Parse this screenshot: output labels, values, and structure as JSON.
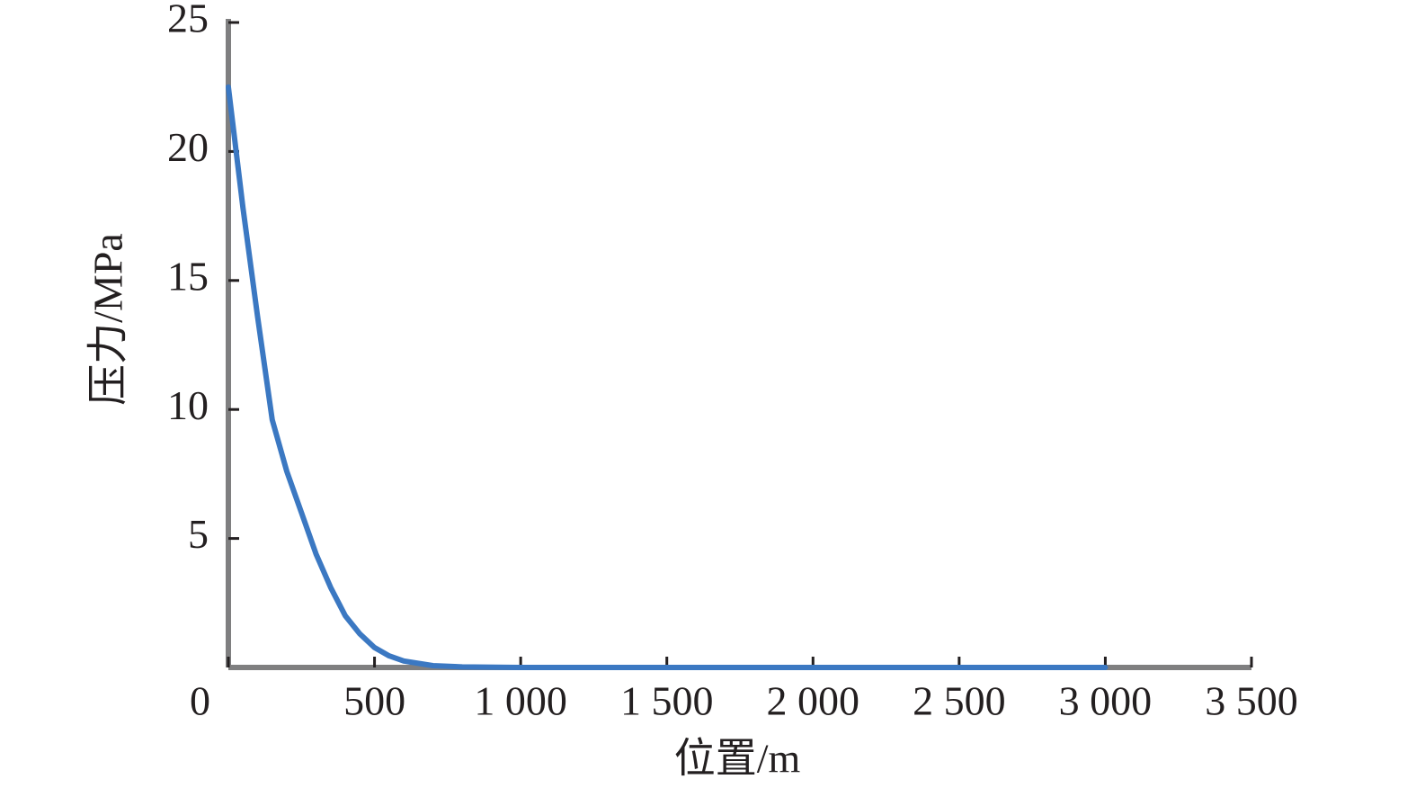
{
  "chart_data": {
    "type": "line",
    "x_label": "位置/m",
    "y_label": "压力/MPa",
    "x": [
      0,
      50,
      100,
      150,
      200,
      250,
      300,
      350,
      400,
      450,
      500,
      550,
      600,
      700,
      800,
      1000,
      1500,
      2000,
      2500,
      3000
    ],
    "series": [
      {
        "name": "压力",
        "color": "#3b78c2",
        "values": [
          22.5,
          17.8,
          13.6,
          9.6,
          7.6,
          6.0,
          4.4,
          3.1,
          2.0,
          1.3,
          0.77,
          0.45,
          0.25,
          0.07,
          0.02,
          0,
          0,
          0,
          0,
          0
        ]
      }
    ],
    "xlim": [
      0,
      3500
    ],
    "xticks": [
      0,
      500,
      {
        "value": 1000,
        "label": "1 000"
      },
      {
        "value": 1500,
        "label": "1 500"
      },
      {
        "value": 2000,
        "label": "2 000"
      },
      {
        "value": 2500,
        "label": "2 500"
      },
      {
        "value": 3000,
        "label": "3 000"
      },
      {
        "value": 3500,
        "label": "3 500"
      }
    ],
    "ylim": [
      0,
      25
    ],
    "yticks": [
      5,
      10,
      15,
      20,
      25
    ],
    "grid": false
  }
}
